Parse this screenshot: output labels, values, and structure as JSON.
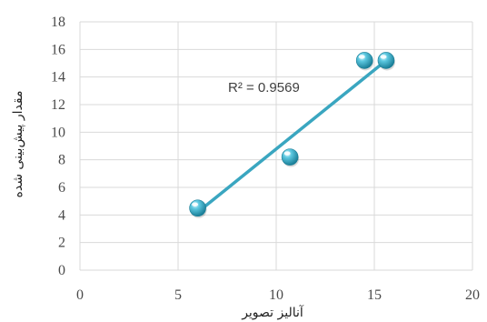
{
  "chart_data": {
    "type": "scatter",
    "title": "",
    "xlabel": "آنالیز تصویر",
    "ylabel": "مقدار پیش‌بینی شده",
    "xlim": [
      0,
      20
    ],
    "ylim": [
      0,
      18
    ],
    "xticks": [
      "0",
      "5",
      "10",
      "15",
      "20"
    ],
    "yticks": [
      "0",
      "2",
      "4",
      "6",
      "8",
      "10",
      "12",
      "14",
      "16",
      "18"
    ],
    "grid": true,
    "legend": "none",
    "points": [
      {
        "x": 6.0,
        "y": 4.5
      },
      {
        "x": 10.7,
        "y": 8.2
      },
      {
        "x": 14.5,
        "y": 15.2
      },
      {
        "x": 15.6,
        "y": 15.2
      }
    ],
    "trendline": {
      "type": "linear",
      "from": {
        "x": 6.0,
        "y": 4.2
      },
      "to": {
        "x": 15.6,
        "y": 15.2
      },
      "label": "R² = 0.9569"
    },
    "colors": {
      "point": "#2fb0cc",
      "trendline": "#3aa6c0",
      "grid": "#d9d9d9"
    }
  }
}
